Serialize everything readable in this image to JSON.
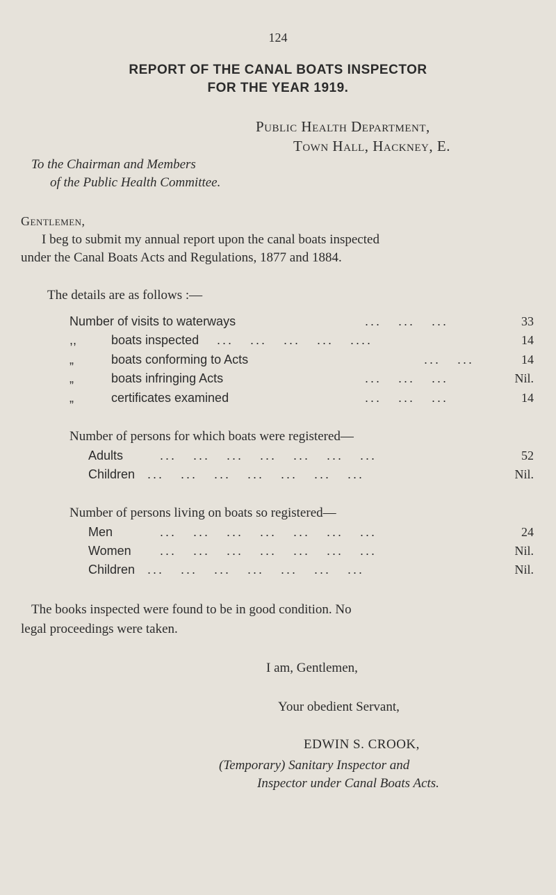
{
  "page_number": "124",
  "title_line1": "REPORT OF THE CANAL BOATS INSPECTOR",
  "title_line2": "FOR THE YEAR 1919.",
  "address_line1": "Public Health Department,",
  "address_line2": "Town Hall, Hackney, E.",
  "addressee_line1": "To the Chairman and Members",
  "addressee_line2": "of the Public Health Committee.",
  "salutation": "Gentlemen,",
  "intro_line1": "I beg to submit my annual report upon the canal boats inspected",
  "intro_line2": "under the Canal Boats Acts and Regulations, 1877 and 1884.",
  "details_intro": "The details are as follows :—",
  "details": [
    {
      "prefix": "",
      "label": "Number of visits to waterways",
      "value": "33"
    },
    {
      "prefix": ",,",
      "label": "boats inspected",
      "value": "14"
    },
    {
      "prefix": "„",
      "label": "boats conforming to Acts",
      "value": "14"
    },
    {
      "prefix": "„",
      "label": "boats infringing Acts",
      "value": "Nil."
    },
    {
      "prefix": "„",
      "label": "certificates examined",
      "value": "14"
    }
  ],
  "registered_heading": "Number of persons for which boats were registered—",
  "registered": [
    {
      "label": "Adults",
      "value": "52"
    },
    {
      "label": "Children",
      "value": "Nil."
    }
  ],
  "living_heading": "Number of persons living on boats so registered—",
  "living": [
    {
      "label": "Men",
      "value": "24"
    },
    {
      "label": "Women",
      "value": "Nil."
    },
    {
      "label": "Children",
      "value": "Nil."
    }
  ],
  "closing_line1": "The books inspected were found to be in good condition. No",
  "closing_line2": "legal proceedings were taken.",
  "signoff1": "I am, Gentlemen,",
  "signoff2": "Your obedient Servant,",
  "signature_name": "EDWIN S. CROOK,",
  "signature_title1": "(Temporary) Sanitary Inspector and",
  "signature_title2": "Inspector under Canal Boats Acts."
}
